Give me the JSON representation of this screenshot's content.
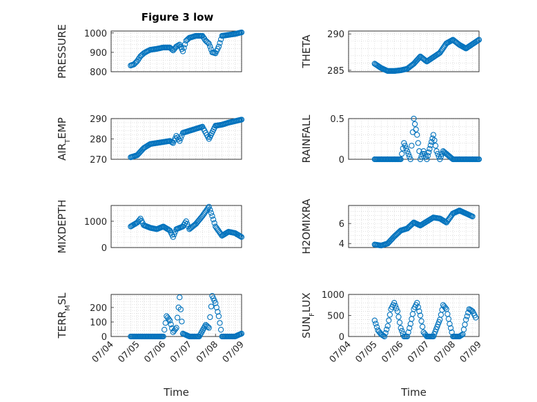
{
  "figure": {
    "title": "Figure 3 low",
    "colors": {
      "series": "#0072BD",
      "axis": "#262626",
      "grid": "#c8c8c8",
      "background": "#ffffff"
    }
  },
  "chart_data": [
    {
      "type": "scatter",
      "ylabel": "PRESSURE",
      "ylim": [
        800,
        1010
      ],
      "yticks": [
        800,
        900,
        1000
      ],
      "xlim": [
        "07/04",
        "07/09"
      ],
      "xticks": [],
      "grid": true,
      "points": [
        [
          "07/04 18:00",
          832
        ],
        [
          "07/04 21:00",
          838
        ],
        [
          "07/05 00:00",
          855
        ],
        [
          "07/05 03:00",
          880
        ],
        [
          "07/05 06:00",
          895
        ],
        [
          "07/05 09:00",
          905
        ],
        [
          "07/05 12:00",
          913
        ],
        [
          "07/05 18:00",
          918
        ],
        [
          "07/06 00:00",
          925
        ],
        [
          "07/06 06:00",
          925
        ],
        [
          "07/06 09:00",
          910
        ],
        [
          "07/06 12:00",
          930
        ],
        [
          "07/06 15:00",
          940
        ],
        [
          "07/06 18:00",
          905
        ],
        [
          "07/06 21:00",
          960
        ],
        [
          "07/07 00:00",
          975
        ],
        [
          "07/07 06:00",
          985
        ],
        [
          "07/07 12:00",
          985
        ],
        [
          "07/07 15:00",
          960
        ],
        [
          "07/07 18:00",
          945
        ],
        [
          "07/07 21:00",
          900
        ],
        [
          "07/08 00:00",
          895
        ],
        [
          "07/08 03:00",
          930
        ],
        [
          "07/08 06:00",
          985
        ],
        [
          "07/08 12:00",
          990
        ],
        [
          "07/08 18:00",
          995
        ],
        [
          "07/09 00:00",
          1003
        ]
      ]
    },
    {
      "type": "scatter",
      "ylabel": "THETA",
      "ylim": [
        284.8,
        290.4
      ],
      "yticks": [
        285,
        290
      ],
      "xlim": [
        "07/04",
        "07/09"
      ],
      "xticks": [],
      "grid": true,
      "points": [
        [
          "07/05 00:00",
          285.9
        ],
        [
          "07/05 06:00",
          285.3
        ],
        [
          "07/05 12:00",
          284.9
        ],
        [
          "07/05 18:00",
          284.9
        ],
        [
          "07/06 00:00",
          285.0
        ],
        [
          "07/06 06:00",
          285.2
        ],
        [
          "07/06 12:00",
          285.9
        ],
        [
          "07/06 18:00",
          286.9
        ],
        [
          "07/07 00:00",
          286.2
        ],
        [
          "07/07 06:00",
          286.8
        ],
        [
          "07/07 12:00",
          287.4
        ],
        [
          "07/07 18:00",
          288.7
        ],
        [
          "07/08 00:00",
          289.2
        ],
        [
          "07/08 06:00",
          288.5
        ],
        [
          "07/08 12:00",
          288.0
        ],
        [
          "07/08 18:00",
          288.6
        ],
        [
          "07/09 00:00",
          289.2
        ]
      ]
    },
    {
      "type": "scatter",
      "ylabel": "AIR_TEMP",
      "ylim": [
        270,
        290
      ],
      "yticks": [
        270,
        280,
        290
      ],
      "xlim": [
        "07/04",
        "07/09"
      ],
      "xticks": [],
      "grid": true,
      "points": [
        [
          "07/04 18:00",
          271
        ],
        [
          "07/05 00:00",
          272
        ],
        [
          "07/05 06:00",
          275.5
        ],
        [
          "07/05 12:00",
          277.5
        ],
        [
          "07/05 18:00",
          278
        ],
        [
          "07/06 00:00",
          278.5
        ],
        [
          "07/06 06:00",
          279
        ],
        [
          "07/06 09:00",
          278
        ],
        [
          "07/06 12:00",
          281.5
        ],
        [
          "07/06 15:00",
          279
        ],
        [
          "07/06 18:00",
          283
        ],
        [
          "07/07 00:00",
          284
        ],
        [
          "07/07 06:00",
          285
        ],
        [
          "07/07 12:00",
          286
        ],
        [
          "07/07 15:00",
          283
        ],
        [
          "07/07 18:00",
          280
        ],
        [
          "07/08 00:00",
          286.5
        ],
        [
          "07/08 06:00",
          287
        ],
        [
          "07/08 12:00",
          288
        ],
        [
          "07/09 00:00",
          289.5
        ]
      ]
    },
    {
      "type": "scatter",
      "ylabel": "RAINFALL",
      "ylim": [
        0,
        0.5
      ],
      "yticks": [
        0,
        0.5
      ],
      "xlim": [
        "07/04",
        "07/09"
      ],
      "xticks": [],
      "grid": true,
      "points": [
        [
          "07/05 00:00",
          0
        ],
        [
          "07/05 12:00",
          0
        ],
        [
          "07/06 00:00",
          0
        ],
        [
          "07/06 03:00",
          0.2
        ],
        [
          "07/06 06:00",
          0.1
        ],
        [
          "07/06 09:00",
          0
        ],
        [
          "07/06 12:00",
          0.5
        ],
        [
          "07/06 15:00",
          0.3
        ],
        [
          "07/06 18:00",
          0
        ],
        [
          "07/06 21:00",
          0.1
        ],
        [
          "07/07 00:00",
          0
        ],
        [
          "07/07 06:00",
          0.3
        ],
        [
          "07/07 09:00",
          0.1
        ],
        [
          "07/07 12:00",
          0
        ],
        [
          "07/07 15:00",
          0.1
        ],
        [
          "07/08 00:00",
          0
        ],
        [
          "07/08 12:00",
          0
        ],
        [
          "07/09 00:00",
          0
        ]
      ]
    },
    {
      "type": "scatter",
      "ylabel": "MIXDEPTH",
      "ylim": [
        0,
        1600
      ],
      "yticks": [
        0,
        1000
      ],
      "xlim": [
        "07/04",
        "07/09"
      ],
      "xticks": [],
      "grid": true,
      "points": [
        [
          "07/04 18:00",
          800
        ],
        [
          "07/05 00:00",
          950
        ],
        [
          "07/05 03:00",
          1100
        ],
        [
          "07/05 06:00",
          850
        ],
        [
          "07/05 12:00",
          750
        ],
        [
          "07/05 18:00",
          700
        ],
        [
          "07/06 00:00",
          800
        ],
        [
          "07/06 06:00",
          650
        ],
        [
          "07/06 09:00",
          400
        ],
        [
          "07/06 12:00",
          700
        ],
        [
          "07/06 18:00",
          800
        ],
        [
          "07/06 21:00",
          1000
        ],
        [
          "07/07 00:00",
          700
        ],
        [
          "07/07 06:00",
          900
        ],
        [
          "07/07 12:00",
          1200
        ],
        [
          "07/07 18:00",
          1550
        ],
        [
          "07/07 21:00",
          1200
        ],
        [
          "07/08 00:00",
          800
        ],
        [
          "07/08 06:00",
          450
        ],
        [
          "07/08 12:00",
          600
        ],
        [
          "07/08 18:00",
          550
        ],
        [
          "07/09 00:00",
          400
        ]
      ]
    },
    {
      "type": "scatter",
      "ylabel": "H2OMIXRA",
      "ylim": [
        3.6,
        7.8
      ],
      "yticks": [
        4,
        6
      ],
      "xlim": [
        "07/04",
        "07/09"
      ],
      "xticks": [],
      "grid": true,
      "points": [
        [
          "07/05 00:00",
          3.9
        ],
        [
          "07/05 06:00",
          3.8
        ],
        [
          "07/05 12:00",
          4.0
        ],
        [
          "07/05 18:00",
          4.7
        ],
        [
          "07/06 00:00",
          5.3
        ],
        [
          "07/06 06:00",
          5.5
        ],
        [
          "07/06 12:00",
          6.1
        ],
        [
          "07/06 18:00",
          5.8
        ],
        [
          "07/07 00:00",
          6.2
        ],
        [
          "07/07 06:00",
          6.6
        ],
        [
          "07/07 12:00",
          6.5
        ],
        [
          "07/07 18:00",
          6.1
        ],
        [
          "07/08 00:00",
          7.0
        ],
        [
          "07/08 06:00",
          7.3
        ],
        [
          "07/08 12:00",
          7.0
        ],
        [
          "07/08 18:00",
          6.7
        ]
      ]
    },
    {
      "type": "scatter",
      "ylabel": "TERR_MSL",
      "ylim": [
        0,
        290
      ],
      "yticks": [
        0,
        100,
        200
      ],
      "xlim": [
        "07/04",
        "07/09"
      ],
      "xticks": [
        "07/04",
        "07/05",
        "07/06",
        "07/07",
        "07/08",
        "07/09"
      ],
      "xlabel": "Time",
      "grid": true,
      "points": [
        [
          "07/04 18:00",
          0
        ],
        [
          "07/05 12:00",
          0
        ],
        [
          "07/06 00:00",
          0
        ],
        [
          "07/06 03:00",
          140
        ],
        [
          "07/06 06:00",
          110
        ],
        [
          "07/06 09:00",
          30
        ],
        [
          "07/06 12:00",
          60
        ],
        [
          "07/06 15:00",
          270
        ],
        [
          "07/06 18:00",
          20
        ],
        [
          "07/07 00:00",
          0
        ],
        [
          "07/07 09:00",
          0
        ],
        [
          "07/07 15:00",
          80
        ],
        [
          "07/07 18:00",
          60
        ],
        [
          "07/07 21:00",
          280
        ],
        [
          "07/08 00:00",
          230
        ],
        [
          "07/08 03:00",
          140
        ],
        [
          "07/08 06:00",
          0
        ],
        [
          "07/08 18:00",
          0
        ],
        [
          "07/09 00:00",
          20
        ]
      ]
    },
    {
      "type": "scatter",
      "ylabel": "SUN_FLUX",
      "ylim": [
        0,
        1000
      ],
      "yticks": [
        0,
        500,
        1000
      ],
      "xlim": [
        "07/04",
        "07/09"
      ],
      "xticks": [
        "07/04",
        "07/05",
        "07/06",
        "07/07",
        "07/08",
        "07/09"
      ],
      "xlabel": "Time",
      "grid": true,
      "points": [
        [
          "07/05 00:00",
          380
        ],
        [
          "07/05 03:00",
          150
        ],
        [
          "07/05 06:00",
          50
        ],
        [
          "07/05 09:00",
          0
        ],
        [
          "07/05 12:00",
          250
        ],
        [
          "07/05 15:00",
          650
        ],
        [
          "07/05 18:00",
          800
        ],
        [
          "07/05 21:00",
          600
        ],
        [
          "07/06 00:00",
          200
        ],
        [
          "07/06 03:00",
          0
        ],
        [
          "07/06 06:00",
          0
        ],
        [
          "07/06 09:00",
          300
        ],
        [
          "07/06 12:00",
          650
        ],
        [
          "07/06 15:00",
          800
        ],
        [
          "07/06 18:00",
          500
        ],
        [
          "07/06 21:00",
          100
        ],
        [
          "07/07 00:00",
          0
        ],
        [
          "07/07 06:00",
          0
        ],
        [
          "07/07 12:00",
          400
        ],
        [
          "07/07 15:00",
          750
        ],
        [
          "07/07 18:00",
          650
        ],
        [
          "07/07 21:00",
          300
        ],
        [
          "07/08 00:00",
          0
        ],
        [
          "07/08 06:00",
          0
        ],
        [
          "07/08 09:00",
          50
        ],
        [
          "07/08 12:00",
          400
        ],
        [
          "07/08 15:00",
          650
        ],
        [
          "07/08 18:00",
          600
        ],
        [
          "07/08 21:00",
          450
        ]
      ]
    }
  ]
}
